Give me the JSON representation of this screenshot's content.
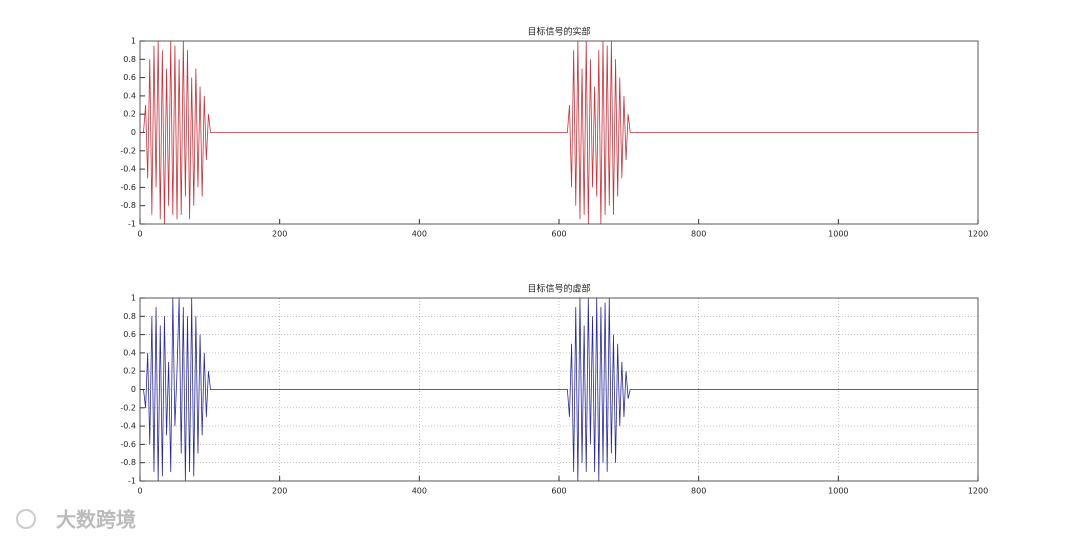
{
  "chart_data": [
    {
      "type": "line",
      "title": "目标信号的实部",
      "grid": false,
      "xlim": [
        0,
        1200
      ],
      "xticks": [
        0,
        200,
        400,
        600,
        800,
        1000,
        1200
      ],
      "ylim": [
        -1,
        1
      ],
      "yticks": [
        -1,
        -0.8,
        -0.6,
        -0.4,
        -0.2,
        0,
        0.2,
        0.4,
        0.6,
        0.8,
        1
      ],
      "series": [
        {
          "color": "#c8323a",
          "x": [
            0,
            5,
            8,
            11,
            14,
            17,
            20,
            23,
            26,
            29,
            32,
            35,
            38,
            41,
            44,
            47,
            50,
            53,
            56,
            59,
            62,
            65,
            68,
            71,
            74,
            77,
            80,
            83,
            86,
            89,
            92,
            95,
            98,
            101,
            612,
            615,
            618,
            621,
            624,
            627,
            630,
            633,
            636,
            639,
            642,
            645,
            648,
            651,
            654,
            657,
            660,
            663,
            666,
            669,
            672,
            675,
            678,
            681,
            684,
            687,
            690,
            693,
            696,
            699,
            702,
            1200
          ],
          "values": [
            0,
            0,
            0.3,
            -0.5,
            0.8,
            -0.9,
            0.95,
            -0.6,
            1,
            -0.95,
            0.9,
            -1,
            0.7,
            -0.8,
            1,
            -0.9,
            0.95,
            -0.95,
            0.8,
            -0.9,
            1,
            -0.7,
            0.9,
            -0.95,
            0.6,
            -0.8,
            0.7,
            -0.6,
            0.5,
            -0.7,
            0.4,
            -0.3,
            0.2,
            0,
            0,
            0.3,
            -0.6,
            0.9,
            -0.8,
            1,
            -0.95,
            0.7,
            -0.9,
            1,
            -1,
            0.8,
            -0.6,
            0.5,
            -0.7,
            0.9,
            -1,
            1,
            -0.9,
            0.95,
            -0.8,
            1,
            -0.9,
            0.8,
            -0.7,
            0.6,
            -0.5,
            0.4,
            -0.3,
            0.2,
            0,
            0
          ]
        }
      ]
    },
    {
      "type": "line",
      "title": "目标信号的虚部",
      "grid": true,
      "xlim": [
        0,
        1200
      ],
      "xticks": [
        0,
        200,
        400,
        600,
        800,
        1000,
        1200
      ],
      "ylim": [
        -1,
        1
      ],
      "yticks": [
        -1,
        -0.8,
        -0.6,
        -0.4,
        -0.2,
        0,
        0.2,
        0.4,
        0.6,
        0.8,
        1
      ],
      "series": [
        {
          "color": "#2a2a9c",
          "x": [
            0,
            5,
            8,
            11,
            14,
            17,
            20,
            23,
            26,
            29,
            32,
            35,
            38,
            41,
            44,
            47,
            50,
            53,
            56,
            59,
            62,
            65,
            68,
            71,
            74,
            77,
            80,
            83,
            86,
            89,
            92,
            95,
            98,
            101,
            612,
            615,
            618,
            621,
            624,
            627,
            630,
            633,
            636,
            639,
            642,
            645,
            648,
            651,
            654,
            657,
            660,
            663,
            666,
            669,
            672,
            675,
            678,
            681,
            684,
            687,
            690,
            693,
            696,
            699,
            702,
            1200
          ],
          "values": [
            0,
            0,
            -0.2,
            0.4,
            -0.6,
            0.8,
            -0.9,
            0.9,
            -1,
            0.7,
            -0.95,
            0.8,
            -0.5,
            0.3,
            -0.9,
            1,
            -0.4,
            0.2,
            1,
            -0.7,
            0.9,
            -1,
            0.8,
            -0.9,
            1,
            -0.95,
            0.8,
            -0.7,
            0.6,
            -0.5,
            0.4,
            -0.3,
            0.2,
            0,
            0,
            -0.3,
            0.5,
            -0.9,
            0.9,
            -1,
            1,
            -0.8,
            0.7,
            -0.9,
            1,
            -0.6,
            0.8,
            -0.9,
            1,
            -1,
            0.9,
            -0.8,
            0.95,
            -0.9,
            1,
            -0.7,
            0.6,
            -0.8,
            0.5,
            -0.4,
            0.3,
            -0.3,
            0.2,
            -0.1,
            0,
            0
          ]
        }
      ]
    }
  ],
  "watermark": "大数跨境"
}
